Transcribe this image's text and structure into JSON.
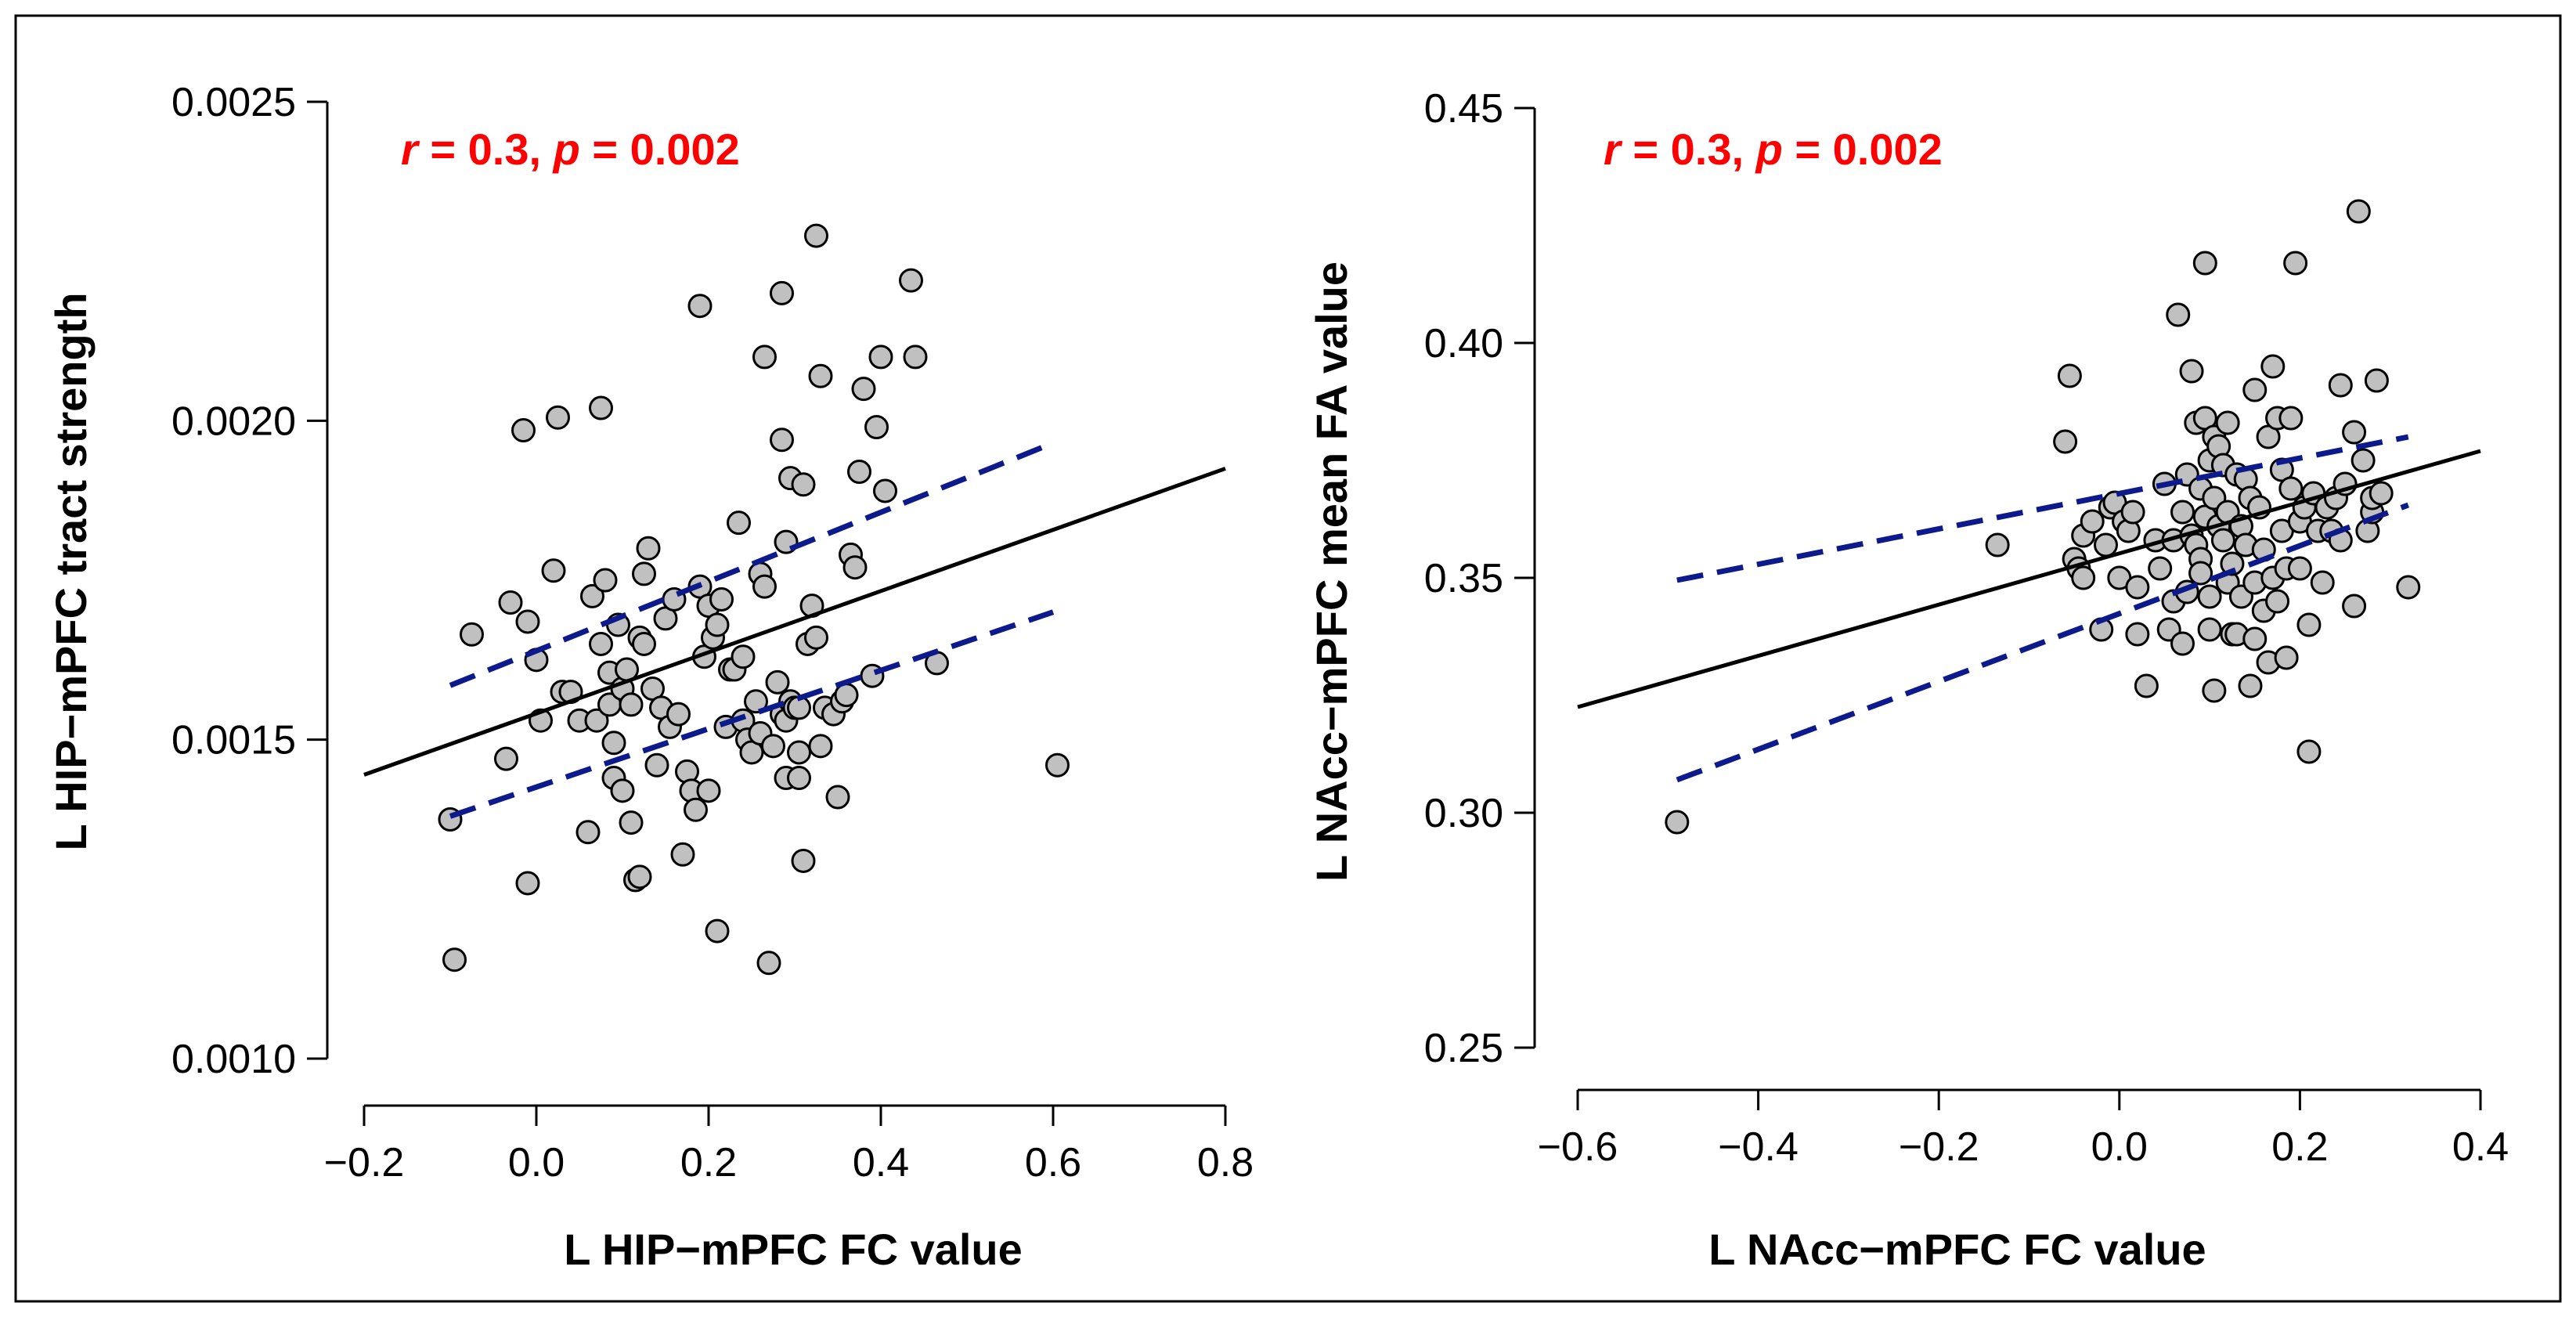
{
  "colors": {
    "point_fill": "#c0c0c0",
    "point_stroke": "#000000",
    "fit_line": "#000000",
    "ci_line": "#0d1a8c",
    "annotation": "#ff0000"
  },
  "chart_data": [
    {
      "type": "scatter",
      "xlabel": "L HIP−mPFC FC value",
      "ylabel": "L HIP−mPFC tract strength",
      "xlim": [
        -0.2,
        0.8
      ],
      "ylim": [
        0.001,
        0.0025
      ],
      "xticks": [
        "−0.2",
        "0.0",
        "0.2",
        "0.4",
        "0.6",
        "0.8"
      ],
      "xtick_values": [
        -0.2,
        0,
        0.2,
        0.4,
        0.6,
        0.8
      ],
      "yticks": [
        "0.0010",
        "0.0015",
        "0.0020",
        "0.0025"
      ],
      "ytick_values": [
        0.001,
        0.0015,
        0.002,
        0.0025
      ],
      "annotation": {
        "r_symbol": "r",
        "r_text": " = 0.3, ",
        "p_symbol": "p",
        "p_text": " = 0.002"
      },
      "fit_line": {
        "x": [
          -0.2,
          0.8
        ],
        "y": [
          0.001445,
          0.001925
        ]
      },
      "ci_upper": {
        "x": [
          -0.1,
          0.6
        ],
        "y": [
          0.001585,
          0.001965
        ]
      },
      "ci_lower": {
        "x": [
          -0.1,
          0.6
        ],
        "y": [
          0.00138,
          0.0017
        ]
      },
      "points": [
        [
          -0.1,
          0.001375
        ],
        [
          -0.095,
          0.001155
        ],
        [
          -0.075,
          0.001665
        ],
        [
          -0.035,
          0.00147
        ],
        [
          -0.03,
          0.001715
        ],
        [
          -0.015,
          0.001985
        ],
        [
          -0.01,
          0.001685
        ],
        [
          -0.01,
          0.001275
        ],
        [
          0.0,
          0.001625
        ],
        [
          0.005,
          0.00153
        ],
        [
          0.02,
          0.001765
        ],
        [
          0.025,
          0.002005
        ],
        [
          0.03,
          0.001575
        ],
        [
          0.04,
          0.001575
        ],
        [
          0.05,
          0.00153
        ],
        [
          0.06,
          0.001355
        ],
        [
          0.065,
          0.001725
        ],
        [
          0.07,
          0.00153
        ],
        [
          0.075,
          0.00202
        ],
        [
          0.075,
          0.00165
        ],
        [
          0.08,
          0.00175
        ],
        [
          0.085,
          0.001605
        ],
        [
          0.085,
          0.001555
        ],
        [
          0.09,
          0.00144
        ],
        [
          0.09,
          0.001495
        ],
        [
          0.095,
          0.00168
        ],
        [
          0.1,
          0.00142
        ],
        [
          0.1,
          0.00158
        ],
        [
          0.105,
          0.00161
        ],
        [
          0.11,
          0.001555
        ],
        [
          0.11,
          0.00137
        ],
        [
          0.115,
          0.00128
        ],
        [
          0.12,
          0.001285
        ],
        [
          0.12,
          0.00166
        ],
        [
          0.125,
          0.00176
        ],
        [
          0.125,
          0.00165
        ],
        [
          0.13,
          0.0018
        ],
        [
          0.135,
          0.00158
        ],
        [
          0.14,
          0.00146
        ],
        [
          0.145,
          0.00155
        ],
        [
          0.15,
          0.00169
        ],
        [
          0.155,
          0.00152
        ],
        [
          0.16,
          0.00172
        ],
        [
          0.165,
          0.00154
        ],
        [
          0.17,
          0.00132
        ],
        [
          0.175,
          0.00145
        ],
        [
          0.18,
          0.00142
        ],
        [
          0.185,
          0.00139
        ],
        [
          0.19,
          0.00174
        ],
        [
          0.19,
          0.00218
        ],
        [
          0.195,
          0.00163
        ],
        [
          0.2,
          0.00171
        ],
        [
          0.2,
          0.00142
        ],
        [
          0.205,
          0.00166
        ],
        [
          0.21,
          0.00168
        ],
        [
          0.21,
          0.0012
        ],
        [
          0.215,
          0.00172
        ],
        [
          0.22,
          0.00152
        ],
        [
          0.225,
          0.00161
        ],
        [
          0.23,
          0.00161
        ],
        [
          0.235,
          0.00184
        ],
        [
          0.24,
          0.00153
        ],
        [
          0.24,
          0.00163
        ],
        [
          0.245,
          0.0015
        ],
        [
          0.25,
          0.00148
        ],
        [
          0.255,
          0.00156
        ],
        [
          0.26,
          0.00151
        ],
        [
          0.26,
          0.00176
        ],
        [
          0.265,
          0.00174
        ],
        [
          0.265,
          0.0021
        ],
        [
          0.27,
          0.00115
        ],
        [
          0.275,
          0.00149
        ],
        [
          0.28,
          0.00159
        ],
        [
          0.285,
          0.00154
        ],
        [
          0.285,
          0.00197
        ],
        [
          0.285,
          0.0022
        ],
        [
          0.29,
          0.00153
        ],
        [
          0.29,
          0.00144
        ],
        [
          0.29,
          0.00181
        ],
        [
          0.295,
          0.00191
        ],
        [
          0.295,
          0.00156
        ],
        [
          0.3,
          0.00155
        ],
        [
          0.305,
          0.00155
        ],
        [
          0.305,
          0.00148
        ],
        [
          0.305,
          0.00144
        ],
        [
          0.31,
          0.00131
        ],
        [
          0.31,
          0.0019
        ],
        [
          0.315,
          0.00165
        ],
        [
          0.32,
          0.00171
        ],
        [
          0.325,
          0.00166
        ],
        [
          0.325,
          0.00229
        ],
        [
          0.33,
          0.00149
        ],
        [
          0.33,
          0.00207
        ],
        [
          0.335,
          0.00155
        ],
        [
          0.345,
          0.00154
        ],
        [
          0.35,
          0.00141
        ],
        [
          0.355,
          0.00156
        ],
        [
          0.36,
          0.00157
        ],
        [
          0.365,
          0.00179
        ],
        [
          0.37,
          0.00177
        ],
        [
          0.375,
          0.00192
        ],
        [
          0.38,
          0.00205
        ],
        [
          0.39,
          0.0016
        ],
        [
          0.395,
          0.00199
        ],
        [
          0.4,
          0.0021
        ],
        [
          0.405,
          0.00189
        ],
        [
          0.435,
          0.00222
        ],
        [
          0.44,
          0.0021
        ],
        [
          0.465,
          0.00162
        ],
        [
          0.605,
          0.00146
        ]
      ]
    },
    {
      "type": "scatter",
      "xlabel": "L NAcc−mPFC FC value",
      "ylabel": "L NAcc−mPFC mean FA value",
      "xlim": [
        -0.6,
        0.4
      ],
      "ylim": [
        0.25,
        0.45
      ],
      "xticks": [
        "−0.6",
        "−0.4",
        "−0.2",
        "0.0",
        "0.2",
        "0.4"
      ],
      "xtick_values": [
        -0.6,
        -0.4,
        -0.2,
        0,
        0.2,
        0.4
      ],
      "yticks": [
        "0.25",
        "0.30",
        "0.35",
        "0.40",
        "0.45"
      ],
      "ytick_values": [
        0.25,
        0.3,
        0.35,
        0.4,
        0.45
      ],
      "annotation": {
        "r_symbol": "r",
        "r_text": " = 0.3, ",
        "p_symbol": "p",
        "p_text": " = 0.002"
      },
      "fit_line": {
        "x": [
          -0.6,
          0.4
        ],
        "y": [
          0.3225,
          0.377
        ]
      },
      "ci_upper": {
        "x": [
          -0.49,
          0.32
        ],
        "y": [
          0.3495,
          0.38
        ]
      },
      "ci_lower": {
        "x": [
          -0.49,
          0.32
        ],
        "y": [
          0.307,
          0.3655
        ]
      },
      "points": [
        [
          -0.49,
          0.298
        ],
        [
          -0.135,
          0.357
        ],
        [
          -0.06,
          0.379
        ],
        [
          -0.055,
          0.393
        ],
        [
          -0.05,
          0.354
        ],
        [
          -0.045,
          0.352
        ],
        [
          -0.04,
          0.359
        ],
        [
          -0.04,
          0.35
        ],
        [
          -0.03,
          0.362
        ],
        [
          -0.02,
          0.339
        ],
        [
          -0.015,
          0.357
        ],
        [
          -0.01,
          0.365
        ],
        [
          -0.005,
          0.366
        ],
        [
          0.0,
          0.35
        ],
        [
          0.005,
          0.362
        ],
        [
          0.01,
          0.36
        ],
        [
          0.015,
          0.364
        ],
        [
          0.02,
          0.348
        ],
        [
          0.02,
          0.338
        ],
        [
          0.03,
          0.327
        ],
        [
          0.04,
          0.358
        ],
        [
          0.045,
          0.352
        ],
        [
          0.05,
          0.37
        ],
        [
          0.055,
          0.339
        ],
        [
          0.06,
          0.358
        ],
        [
          0.06,
          0.345
        ],
        [
          0.065,
          0.406
        ],
        [
          0.07,
          0.364
        ],
        [
          0.07,
          0.336
        ],
        [
          0.075,
          0.347
        ],
        [
          0.075,
          0.372
        ],
        [
          0.08,
          0.359
        ],
        [
          0.08,
          0.394
        ],
        [
          0.085,
          0.357
        ],
        [
          0.085,
          0.383
        ],
        [
          0.09,
          0.354
        ],
        [
          0.09,
          0.369
        ],
        [
          0.09,
          0.351
        ],
        [
          0.095,
          0.363
        ],
        [
          0.095,
          0.384
        ],
        [
          0.095,
          0.417
        ],
        [
          0.1,
          0.339
        ],
        [
          0.1,
          0.346
        ],
        [
          0.1,
          0.375
        ],
        [
          0.105,
          0.326
        ],
        [
          0.105,
          0.367
        ],
        [
          0.105,
          0.38
        ],
        [
          0.11,
          0.361
        ],
        [
          0.11,
          0.378
        ],
        [
          0.115,
          0.374
        ],
        [
          0.115,
          0.358
        ],
        [
          0.12,
          0.349
        ],
        [
          0.12,
          0.383
        ],
        [
          0.12,
          0.364
        ],
        [
          0.125,
          0.338
        ],
        [
          0.125,
          0.353
        ],
        [
          0.13,
          0.338
        ],
        [
          0.13,
          0.372
        ],
        [
          0.135,
          0.361
        ],
        [
          0.135,
          0.346
        ],
        [
          0.14,
          0.357
        ],
        [
          0.14,
          0.371
        ],
        [
          0.145,
          0.327
        ],
        [
          0.145,
          0.367
        ],
        [
          0.15,
          0.349
        ],
        [
          0.15,
          0.337
        ],
        [
          0.15,
          0.39
        ],
        [
          0.155,
          0.365
        ],
        [
          0.16,
          0.356
        ],
        [
          0.16,
          0.343
        ],
        [
          0.165,
          0.38
        ],
        [
          0.165,
          0.332
        ],
        [
          0.17,
          0.35
        ],
        [
          0.17,
          0.395
        ],
        [
          0.175,
          0.345
        ],
        [
          0.175,
          0.384
        ],
        [
          0.18,
          0.36
        ],
        [
          0.18,
          0.373
        ],
        [
          0.185,
          0.333
        ],
        [
          0.185,
          0.352
        ],
        [
          0.19,
          0.384
        ],
        [
          0.19,
          0.369
        ],
        [
          0.195,
          0.417
        ],
        [
          0.2,
          0.352
        ],
        [
          0.2,
          0.362
        ],
        [
          0.205,
          0.365
        ],
        [
          0.21,
          0.34
        ],
        [
          0.21,
          0.313
        ],
        [
          0.215,
          0.368
        ],
        [
          0.22,
          0.36
        ],
        [
          0.225,
          0.349
        ],
        [
          0.23,
          0.365
        ],
        [
          0.235,
          0.36
        ],
        [
          0.24,
          0.367
        ],
        [
          0.245,
          0.358
        ],
        [
          0.245,
          0.391
        ],
        [
          0.25,
          0.37
        ],
        [
          0.26,
          0.381
        ],
        [
          0.26,
          0.344
        ],
        [
          0.265,
          0.428
        ],
        [
          0.27,
          0.375
        ],
        [
          0.275,
          0.36
        ],
        [
          0.28,
          0.364
        ],
        [
          0.28,
          0.367
        ],
        [
          0.285,
          0.392
        ],
        [
          0.29,
          0.368
        ],
        [
          0.32,
          0.348
        ]
      ]
    }
  ]
}
